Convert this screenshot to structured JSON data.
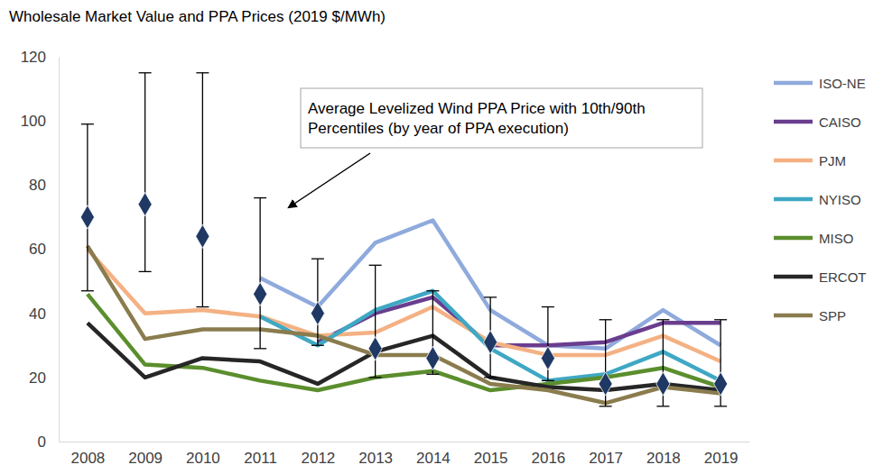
{
  "chart_data": {
    "type": "line",
    "title": "Wholesale Market Value and PPA Prices (2019 $/MWh)",
    "categories": [
      "2008",
      "2009",
      "2010",
      "2011",
      "2012",
      "2013",
      "2014",
      "2015",
      "2016",
      "2017",
      "2018",
      "2019"
    ],
    "ylim": [
      0,
      120
    ],
    "yticks": [
      0,
      20,
      40,
      60,
      80,
      100,
      120
    ],
    "grid": false,
    "legend": "right",
    "series": [
      {
        "name": "ISO-NE",
        "color": "#8FAADC",
        "type": "line",
        "line_style": "solid",
        "values": [
          null,
          null,
          null,
          51,
          42,
          62,
          69,
          41,
          30,
          29,
          41,
          30
        ]
      },
      {
        "name": "CAISO",
        "color": "#6A3D8F",
        "type": "line",
        "line_style": "solid",
        "values": [
          null,
          null,
          null,
          null,
          31,
          40,
          45,
          30,
          30,
          31,
          37,
          37
        ]
      },
      {
        "name": "PJM",
        "color": "#F4B183",
        "type": "line",
        "line_style": "solid",
        "values": [
          60,
          40,
          41,
          39,
          33,
          34,
          42,
          31,
          27,
          27,
          33,
          25
        ]
      },
      {
        "name": "NYISO",
        "color": "#3FA8C4",
        "type": "line",
        "line_style": "solid",
        "values": [
          null,
          null,
          null,
          39,
          30,
          41,
          47,
          29,
          19,
          21,
          28,
          19
        ]
      },
      {
        "name": "MISO",
        "color": "#5B8E2D",
        "type": "line",
        "line_style": "solid",
        "values": [
          46,
          24,
          23,
          19,
          16,
          20,
          22,
          16,
          18,
          20,
          23,
          17
        ]
      },
      {
        "name": "ERCOT",
        "color": "#262626",
        "type": "line",
        "line_style": "solid",
        "values": [
          37,
          20,
          26,
          25,
          18,
          28,
          33,
          20,
          17,
          16,
          18,
          16
        ]
      },
      {
        "name": "SPP",
        "color": "#8A7C4E",
        "type": "line",
        "line_style": "solid",
        "values": [
          61,
          32,
          35,
          35,
          33,
          27,
          27,
          18,
          16,
          12,
          17,
          15
        ]
      },
      {
        "name": "Average Levelized Wind PPA Price with 10th/90th Percentiles (by year of PPA execution)",
        "color": "#1F3864",
        "type": "scatter",
        "marker": "diamond",
        "values": [
          70,
          74,
          64,
          46,
          40,
          29,
          26,
          31,
          26,
          18,
          18,
          18
        ],
        "p10": [
          47,
          53,
          42,
          29,
          30,
          20,
          21,
          20,
          19,
          11,
          11,
          11
        ],
        "p90": [
          99,
          115,
          115,
          76,
          57,
          55,
          47,
          45,
          42,
          38,
          38,
          38
        ]
      }
    ]
  }
}
